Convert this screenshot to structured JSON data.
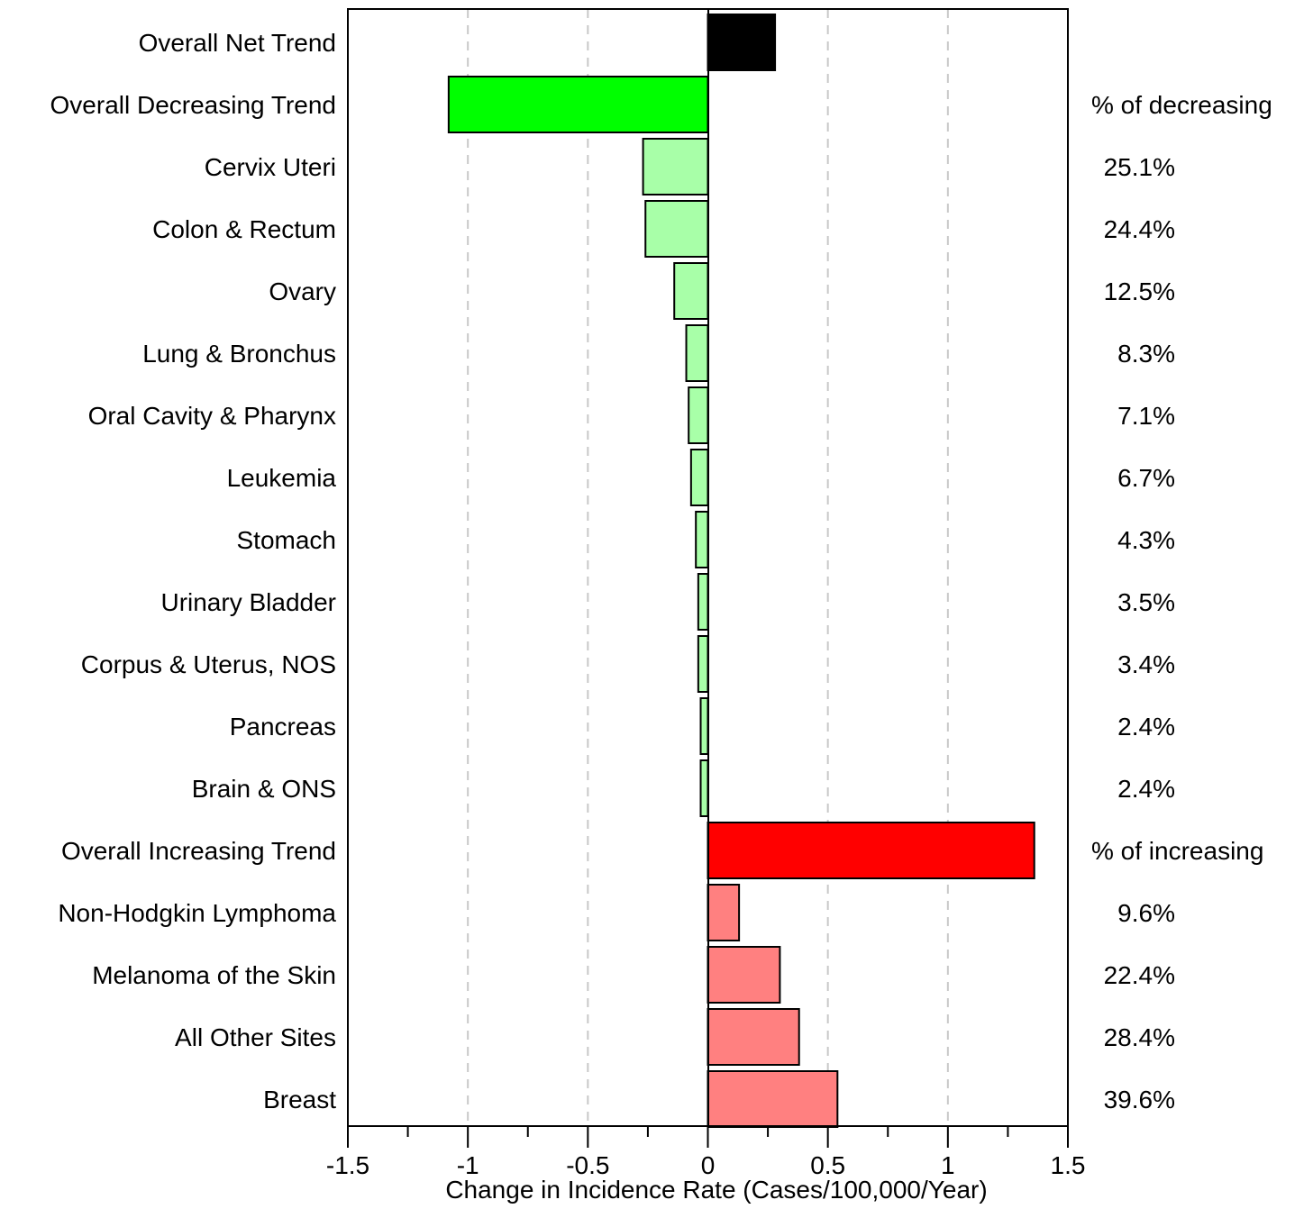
{
  "chart_data": {
    "type": "bar",
    "orientation": "horizontal",
    "xlabel": "Change in Incidence Rate (Cases/100,000/Year)",
    "xlim": [
      -1.5,
      1.5
    ],
    "xticks": [
      "-1.5",
      "-1",
      "-0.5",
      "0",
      "0.5",
      "1",
      "1.5"
    ],
    "xtick_values": [
      -1.5,
      -1,
      -0.5,
      0,
      0.5,
      1,
      1.5
    ],
    "gridlines": "vertical dashed at -1, -0.5, 0.5, 1",
    "categories": [
      "Overall Net Trend",
      "Overall Decreasing Trend",
      "Cervix Uteri",
      "Colon & Rectum",
      "Ovary",
      "Lung & Bronchus",
      "Oral Cavity & Pharynx",
      "Leukemia",
      "Stomach",
      "Urinary Bladder",
      "Corpus & Uterus, NOS",
      "Pancreas",
      "Brain & ONS",
      "Overall Increasing Trend",
      "Non-Hodgkin Lymphoma",
      "Melanoma of the Skin",
      "All Other Sites",
      "Breast"
    ],
    "values": [
      0.28,
      -1.08,
      -0.27,
      -0.26,
      -0.14,
      -0.09,
      -0.08,
      -0.07,
      -0.05,
      -0.04,
      -0.04,
      -0.03,
      -0.03,
      1.36,
      0.13,
      0.3,
      0.38,
      0.54
    ],
    "bar_colors": [
      "#000000",
      "#00ff00",
      "#a8ffa8",
      "#a8ffa8",
      "#a8ffa8",
      "#a8ffa8",
      "#a8ffa8",
      "#a8ffa8",
      "#a8ffa8",
      "#a8ffa8",
      "#a8ffa8",
      "#a8ffa8",
      "#a8ffa8",
      "#ff0000",
      "#ff8080",
      "#ff8080",
      "#ff8080",
      "#ff8080"
    ],
    "right_labels": [
      "",
      "% of decreasing",
      "25.1%",
      "24.4%",
      "12.5%",
      "8.3%",
      "7.1%",
      "6.7%",
      "4.3%",
      "3.5%",
      "3.4%",
      "2.4%",
      "2.4%",
      "% of increasing",
      "9.6%",
      "22.4%",
      "28.4%",
      "39.6%"
    ]
  }
}
